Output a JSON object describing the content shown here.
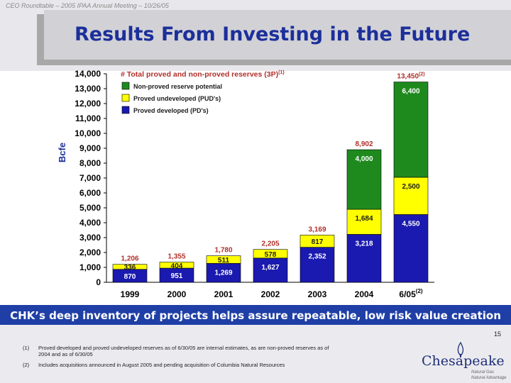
{
  "header": {
    "note": "CEO Roundtable – 2005 IPAA Annual Meeting – 10/26/05",
    "title": "Results From Investing in the Future"
  },
  "chart_data": {
    "type": "bar",
    "stacked": true,
    "legend_title": "# Total proved and non-proved reserves (3P)",
    "legend_title_sup": "(1)",
    "ylabel": "Bcfe",
    "ylim": [
      0,
      14000
    ],
    "yticks": [
      "0",
      "1,000",
      "2,000",
      "3,000",
      "4,000",
      "5,000",
      "6,000",
      "7,000",
      "8,000",
      "9,000",
      "10,000",
      "11,000",
      "12,000",
      "13,000",
      "14,000"
    ],
    "categories": [
      "1999",
      "2000",
      "2001",
      "2002",
      "2003",
      "2004",
      "6/05"
    ],
    "category_sups": [
      "",
      "",
      "",
      "",
      "",
      "",
      "(2)"
    ],
    "series": [
      {
        "name": "Proved developed (PD's)",
        "color": "#1a1ab0",
        "values": [
          870,
          951,
          1269,
          1627,
          2352,
          3218,
          4550
        ],
        "labels": [
          "870",
          "951",
          "1,269",
          "1,627",
          "2,352",
          "3,218",
          "4,550"
        ]
      },
      {
        "name": "Proved undeveloped (PUD's)",
        "color": "#ffff00",
        "values": [
          336,
          404,
          511,
          578,
          817,
          1684,
          2500
        ],
        "labels": [
          "336",
          "404",
          "511",
          "578",
          "817",
          "1,684",
          "2,500"
        ]
      },
      {
        "name": "Non-proved reserve potential",
        "color": "#1e8a1e",
        "values": [
          0,
          0,
          0,
          0,
          0,
          4000,
          6400
        ],
        "labels": [
          "",
          "",
          "",
          "",
          "",
          "4,000",
          "6,400"
        ]
      }
    ],
    "totals": [
      "1,206",
      "1,355",
      "1,780",
      "2,205",
      "3,169",
      "8,902",
      "13,450"
    ],
    "total_sups": [
      "",
      "",
      "",
      "",
      "",
      "",
      "(2)"
    ],
    "total_color": "#b0302a",
    "grid": false,
    "legend_position": "top-left"
  },
  "banner": "CHK’s deep inventory of projects helps assure repeatable, low risk value creation",
  "page_number": "15",
  "footnotes": [
    {
      "num": "(1)",
      "text": "Proved developed and proved undeveloped reserves as of 6/30/05 are internal estimates, as are non-proved reserves as of 2004 and as of 6/30/05"
    },
    {
      "num": "(2)",
      "text": "Includes acquisitions announced in August 2005 and pending acquisition of Columbia Natural Resources"
    }
  ],
  "logo": {
    "name": "Chesapeake",
    "tagline_1": "Natural Gas",
    "tagline_2": "Natural Advantage"
  }
}
